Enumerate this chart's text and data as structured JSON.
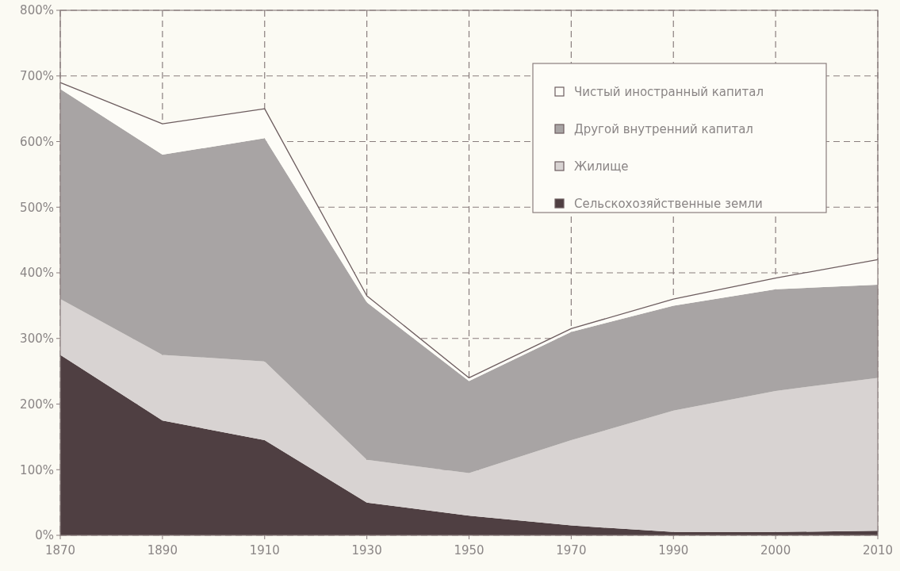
{
  "chart_data": {
    "type": "area",
    "stacked": true,
    "categories": [
      "1870",
      "1890",
      "1910",
      "1930",
      "1950",
      "1970",
      "1990",
      "2000",
      "2010"
    ],
    "series": [
      {
        "name": "Сельскохозяйственные земли",
        "color": "#4f3f42",
        "values": [
          275,
          175,
          145,
          50,
          30,
          15,
          5,
          5,
          7
        ]
      },
      {
        "name": "Жилище",
        "color": "#d8d3d2",
        "values": [
          85,
          100,
          120,
          65,
          65,
          130,
          185,
          215,
          233
        ]
      },
      {
        "name": "Другой внутренний капитал",
        "color": "#a8a4a4",
        "values": [
          320,
          305,
          340,
          240,
          140,
          165,
          160,
          155,
          142
        ]
      },
      {
        "name": "Чистый иностранный капитал",
        "color": "#fdfcf7",
        "values": [
          10,
          47,
          45,
          10,
          5,
          5,
          10,
          17,
          38
        ]
      }
    ],
    "ylim": [
      0,
      800
    ],
    "yticks": [
      {
        "value": 0,
        "label": "0%"
      },
      {
        "value": 100,
        "label": "100%"
      },
      {
        "value": 200,
        "label": "200%"
      },
      {
        "value": 300,
        "label": "300%"
      },
      {
        "value": 400,
        "label": "400%"
      },
      {
        "value": 500,
        "label": "500%"
      },
      {
        "value": 600,
        "label": "600%"
      },
      {
        "value": 700,
        "label": "700%"
      },
      {
        "value": 800,
        "label": "800%"
      }
    ],
    "grid": true,
    "line_style": "dashed",
    "legend": "top right"
  }
}
